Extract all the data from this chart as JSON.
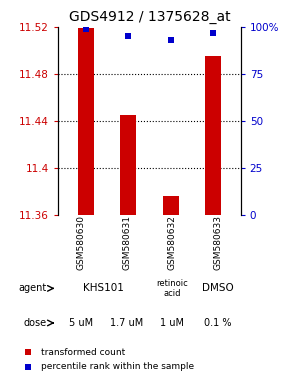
{
  "title": "GDS4912 / 1375628_at",
  "samples": [
    "GSM580630",
    "GSM580631",
    "GSM580632",
    "GSM580633"
  ],
  "bar_values": [
    11.519,
    11.445,
    11.376,
    11.495
  ],
  "bar_baseline": 11.36,
  "percentile_values": [
    99,
    95,
    93,
    97
  ],
  "ylim": [
    11.36,
    11.52
  ],
  "yticks": [
    11.36,
    11.4,
    11.44,
    11.48,
    11.52
  ],
  "right_yticks": [
    0,
    25,
    50,
    75,
    100
  ],
  "right_ylim": [
    0,
    100
  ],
  "bar_color": "#cc0000",
  "dot_color": "#0000cc",
  "dose_labels": [
    "5 uM",
    "1.7 uM",
    "1 uM",
    "0.1 %"
  ],
  "dose_color": "#dd55dd",
  "sample_bg": "#cccccc",
  "title_fontsize": 10,
  "tick_fontsize": 7.5,
  "label_fontsize": 7
}
